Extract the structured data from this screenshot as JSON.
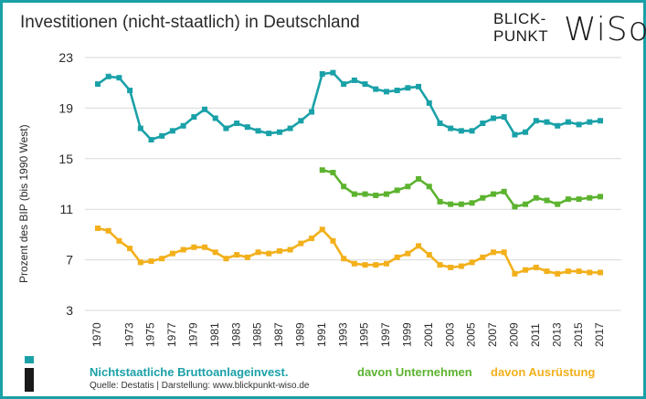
{
  "header": {
    "title": "Investitionen (nicht-staatlich) in Deutschland",
    "logo_line1": "BLICK-",
    "logo_line2": "PUNKT",
    "logo_big": "WiSo"
  },
  "footer": {
    "legend_teal": "Nichtstaatliche Bruttoanlageinvest.",
    "legend_green": "davon Unternehmen",
    "legend_orange": "davon Ausrüstung",
    "source": "Quelle: Destatis  |  Darstellung: www.blickpunkt-wiso.de"
  },
  "colors": {
    "teal": "#1aa1a8",
    "green": "#5cb32f",
    "orange": "#f2b01b",
    "grid": "#d9d9d9"
  },
  "chart_data": {
    "type": "line",
    "ylabel": "Prozent des BIP (bis 1990 West)",
    "ylim": [
      3,
      23
    ],
    "yticks": [
      3,
      7,
      11,
      15,
      19,
      23
    ],
    "xlim": [
      1970,
      2017
    ],
    "xticks": [
      1970,
      1973,
      1975,
      1977,
      1979,
      1981,
      1983,
      1985,
      1987,
      1989,
      1991,
      1993,
      1995,
      1997,
      1999,
      2001,
      2003,
      2005,
      2007,
      2009,
      2011,
      2013,
      2015,
      2017
    ],
    "grid": "horizontal",
    "series": [
      {
        "name": "Nichtstaatliche Bruttoanlageinvest.",
        "color": "#1aa1a8",
        "x": [
          1970,
          1971,
          1972,
          1973,
          1974,
          1975,
          1976,
          1977,
          1978,
          1979,
          1980,
          1981,
          1982,
          1983,
          1984,
          1985,
          1986,
          1987,
          1988,
          1989,
          1990,
          1991,
          1992,
          1993,
          1994,
          1995,
          1996,
          1997,
          1998,
          1999,
          2000,
          2001,
          2002,
          2003,
          2004,
          2005,
          2006,
          2007,
          2008,
          2009,
          2010,
          2011,
          2012,
          2013,
          2014,
          2015,
          2016,
          2017
        ],
        "y": [
          20.9,
          21.5,
          21.4,
          20.4,
          17.4,
          16.5,
          16.8,
          17.2,
          17.6,
          18.3,
          18.9,
          18.2,
          17.4,
          17.8,
          17.5,
          17.2,
          17.0,
          17.1,
          17.4,
          18.0,
          18.7,
          21.7,
          21.8,
          20.9,
          21.2,
          20.9,
          20.5,
          20.3,
          20.4,
          20.6,
          20.7,
          19.4,
          17.8,
          17.4,
          17.2,
          17.2,
          17.8,
          18.2,
          18.3,
          16.9,
          17.1,
          18.0,
          17.9,
          17.6,
          17.9,
          17.7,
          17.9,
          18.0
        ]
      },
      {
        "name": "davon Unternehmen",
        "color": "#5cb32f",
        "x": [
          1991,
          1992,
          1993,
          1994,
          1995,
          1996,
          1997,
          1998,
          1999,
          2000,
          2001,
          2002,
          2003,
          2004,
          2005,
          2006,
          2007,
          2008,
          2009,
          2010,
          2011,
          2012,
          2013,
          2014,
          2015,
          2016,
          2017
        ],
        "y": [
          14.1,
          13.9,
          12.8,
          12.2,
          12.2,
          12.1,
          12.2,
          12.5,
          12.8,
          13.4,
          12.8,
          11.6,
          11.4,
          11.4,
          11.5,
          11.9,
          12.2,
          12.4,
          11.2,
          11.4,
          11.9,
          11.7,
          11.4,
          11.8,
          11.8,
          11.9,
          12.0
        ]
      },
      {
        "name": "davon Ausrüstung",
        "color": "#f2b01b",
        "x": [
          1970,
          1971,
          1972,
          1973,
          1974,
          1975,
          1976,
          1977,
          1978,
          1979,
          1980,
          1981,
          1982,
          1983,
          1984,
          1985,
          1986,
          1987,
          1988,
          1989,
          1990,
          1991,
          1992,
          1993,
          1994,
          1995,
          1996,
          1997,
          1998,
          1999,
          2000,
          2001,
          2002,
          2003,
          2004,
          2005,
          2006,
          2007,
          2008,
          2009,
          2010,
          2011,
          2012,
          2013,
          2014,
          2015,
          2016,
          2017
        ],
        "y": [
          9.5,
          9.3,
          8.5,
          7.9,
          6.8,
          6.9,
          7.1,
          7.5,
          7.8,
          8.0,
          8.0,
          7.6,
          7.1,
          7.4,
          7.2,
          7.6,
          7.5,
          7.7,
          7.8,
          8.3,
          8.7,
          9.4,
          8.5,
          7.1,
          6.7,
          6.6,
          6.6,
          6.7,
          7.2,
          7.5,
          8.1,
          7.4,
          6.6,
          6.4,
          6.5,
          6.8,
          7.2,
          7.6,
          7.6,
          5.9,
          6.2,
          6.4,
          6.1,
          5.9,
          6.1,
          6.1,
          6.0,
          6.0
        ]
      }
    ]
  }
}
